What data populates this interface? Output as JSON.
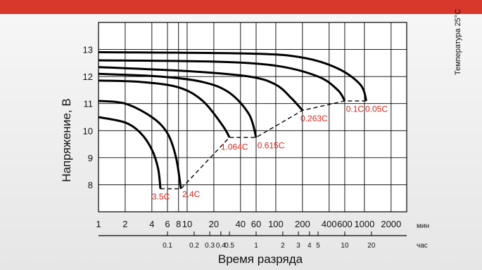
{
  "chart_data": {
    "type": "line",
    "xlabel": "Время разряда",
    "ylabel": "Напряжение, В",
    "note": "Температура 25°С",
    "x_scale": "log",
    "x_units": "мин",
    "ylim": [
      7,
      14
    ],
    "yticks": [
      "8",
      "9",
      "10",
      "11",
      "12",
      "13"
    ],
    "x_ticks_min": [
      {
        "label": "1",
        "v": 1
      },
      {
        "label": "2",
        "v": 2
      },
      {
        "label": "4",
        "v": 4
      },
      {
        "label": "6",
        "v": 6
      },
      {
        "label": "8",
        "v": 8
      },
      {
        "label": "10",
        "v": 10
      },
      {
        "label": "20",
        "v": 20
      },
      {
        "label": "40",
        "v": 40
      },
      {
        "label": "60",
        "v": 60
      },
      {
        "label": "100",
        "v": 100
      },
      {
        "label": "200",
        "v": 200
      },
      {
        "label": "400",
        "v": 400
      },
      {
        "label": "600",
        "v": 600
      },
      {
        "label": "1000",
        "v": 1000
      },
      {
        "label": "2000",
        "v": 2000
      }
    ],
    "x_ticks_hour": [
      {
        "label": "0.1",
        "v": 6
      },
      {
        "label": "0.2",
        "v": 12
      },
      {
        "label": "0.3",
        "v": 18
      },
      {
        "label": "0.4",
        "v": 24
      },
      {
        "label": "0.5",
        "v": 30
      },
      {
        "label": "1",
        "v": 60
      },
      {
        "label": "2",
        "v": 120
      },
      {
        "label": "3",
        "v": 180
      },
      {
        "label": "4",
        "v": 240
      },
      {
        "label": "5",
        "v": 300
      },
      {
        "label": "10",
        "v": 600
      },
      {
        "label": "20",
        "v": 1200
      }
    ],
    "unit_min": "мин",
    "unit_hour": "час",
    "series": [
      {
        "name": "3.5C",
        "points": [
          [
            1,
            10.5
          ],
          [
            2,
            10.3
          ],
          [
            3,
            9.9
          ],
          [
            4,
            9.3
          ],
          [
            4.7,
            8.6
          ],
          [
            5,
            7.85
          ]
        ]
      },
      {
        "name": "2.4C",
        "points": [
          [
            1,
            11.1
          ],
          [
            2,
            11.0
          ],
          [
            4,
            10.5
          ],
          [
            6,
            9.9
          ],
          [
            7.5,
            9.0
          ],
          [
            8.5,
            7.85
          ]
        ]
      },
      {
        "name": "1.064C",
        "points": [
          [
            1,
            11.85
          ],
          [
            3,
            11.8
          ],
          [
            8,
            11.6
          ],
          [
            15,
            11.1
          ],
          [
            25,
            10.2
          ],
          [
            30,
            9.75
          ]
        ]
      },
      {
        "name": "0.615C",
        "points": [
          [
            1,
            12.1
          ],
          [
            5,
            12.0
          ],
          [
            15,
            11.8
          ],
          [
            30,
            11.4
          ],
          [
            50,
            10.6
          ],
          [
            60,
            9.75
          ]
        ]
      },
      {
        "name": "0.263C",
        "points": [
          [
            1,
            12.35
          ],
          [
            10,
            12.2
          ],
          [
            50,
            12.0
          ],
          [
            100,
            11.7
          ],
          [
            150,
            11.2
          ],
          [
            200,
            10.75
          ]
        ]
      },
      {
        "name": "0.1C",
        "points": [
          [
            1,
            12.6
          ],
          [
            20,
            12.55
          ],
          [
            100,
            12.4
          ],
          [
            300,
            12.0
          ],
          [
            500,
            11.5
          ],
          [
            600,
            11.1
          ]
        ]
      },
      {
        "name": "0.05C",
        "points": [
          [
            1,
            12.9
          ],
          [
            50,
            12.85
          ],
          [
            200,
            12.7
          ],
          [
            500,
            12.3
          ],
          [
            900,
            11.7
          ],
          [
            1050,
            11.1
          ]
        ]
      }
    ],
    "cutoff": [
      [
        5,
        7.85
      ],
      [
        8.5,
        7.85
      ],
      [
        30,
        9.75
      ],
      [
        60,
        9.75
      ],
      [
        200,
        10.75
      ],
      [
        600,
        11.1
      ],
      [
        1050,
        11.1
      ]
    ],
    "labels": [
      {
        "text": "3.5C",
        "x": 4,
        "y": 7.45
      },
      {
        "text": "2.4C",
        "x": 8.8,
        "y": 7.55
      },
      {
        "text": "1.064C",
        "x": 24,
        "y": 9.3
      },
      {
        "text": "0.615C",
        "x": 62,
        "y": 9.35
      },
      {
        "text": "0.263C",
        "x": 190,
        "y": 10.35
      },
      {
        "text": "0.1C",
        "x": 620,
        "y": 10.7
      },
      {
        "text": "0.05C",
        "x": 1020,
        "y": 10.7
      }
    ]
  }
}
